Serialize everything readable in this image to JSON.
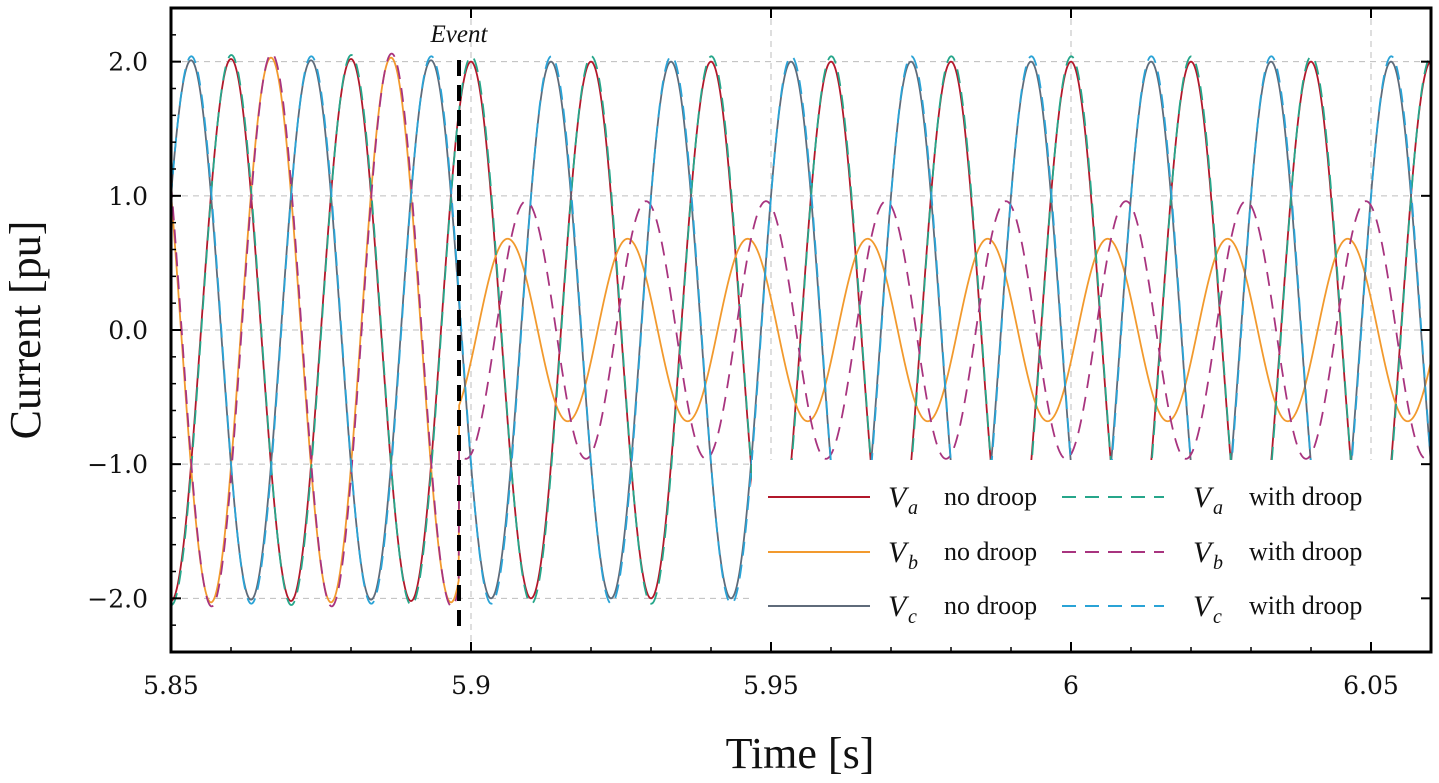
{
  "chart_data": {
    "type": "line",
    "title": "",
    "xlabel": "Time [s]",
    "ylabel": "Current [pu]",
    "xlim": [
      5.85,
      6.06
    ],
    "ylim": [
      -2.4,
      2.4
    ],
    "xticks": [
      5.85,
      5.9,
      5.95,
      6.0,
      6.05
    ],
    "xtick_labels": [
      "5.85",
      "5.9",
      "5.95",
      "6",
      "6.05"
    ],
    "yticks": [
      2.0,
      1.0,
      0.0,
      -1.0,
      -2.0
    ],
    "ytick_labels": [
      "2.0",
      "1.0",
      "0.0",
      "−1.0",
      "−2.0"
    ],
    "grid": true,
    "frequency_hz": 50,
    "event": {
      "time": 5.898,
      "label": "Event"
    },
    "legend_position": "bottom-right",
    "legend_suffix_no_droop": "no droop",
    "legend_suffix_with_droop": "with droop",
    "series": [
      {
        "id": "va_no",
        "symbol": "V",
        "sub": "a",
        "name": "V_a no droop",
        "color": "#b2182b",
        "dash": "solid",
        "pre_amplitude": 2.02,
        "post_amplitude": 2.0,
        "phase_deg": 90,
        "post_phase_deg": 90
      },
      {
        "id": "vb_no",
        "symbol": "V",
        "sub": "b",
        "name": "V_b no droop",
        "color": "#f29a2e",
        "dash": "solid",
        "pre_amplitude": 2.03,
        "post_amplitude": 0.68,
        "phase_deg": -30,
        "post_phase_deg": -20
      },
      {
        "id": "vc_no",
        "symbol": "V",
        "sub": "c",
        "name": "V_c no droop",
        "color": "#5f6b7a",
        "dash": "solid",
        "pre_amplitude": 2.01,
        "post_amplitude": 2.0,
        "phase_deg": 210,
        "post_phase_deg": 210
      },
      {
        "id": "va_dr",
        "symbol": "V",
        "sub": "a",
        "name": "V_a with droop",
        "color": "#26a68a",
        "dash": "dashed",
        "pre_amplitude": 2.05,
        "post_amplitude": 2.04,
        "phase_deg": 89,
        "post_phase_deg": 89
      },
      {
        "id": "vb_dr",
        "symbol": "V",
        "sub": "b",
        "name": "V_b with droop",
        "color": "#a8347f",
        "dash": "dashed",
        "pre_amplitude": 2.06,
        "post_amplitude": 0.96,
        "phase_deg": -32,
        "post_phase_deg": -75
      },
      {
        "id": "vc_dr",
        "symbol": "V",
        "sub": "c",
        "name": "V_c with droop",
        "color": "#2aa3d6",
        "dash": "dashed",
        "pre_amplitude": 2.04,
        "post_amplitude": 2.04,
        "phase_deg": 209,
        "post_phase_deg": 209
      }
    ]
  }
}
